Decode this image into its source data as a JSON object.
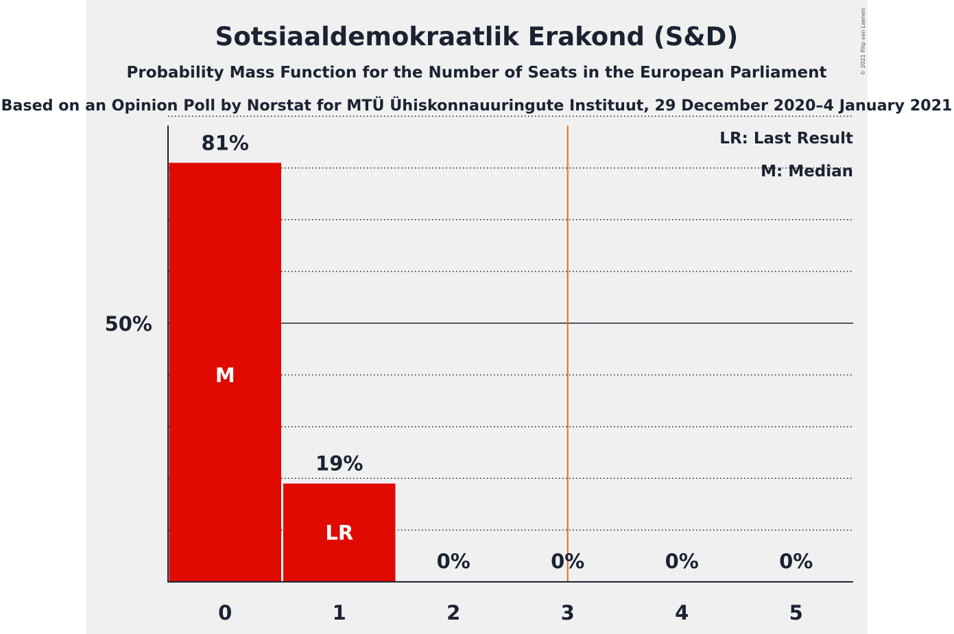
{
  "chart_data": {
    "type": "bar",
    "title": "Sotsiaaldemokraatlik Erakond (S&D)",
    "subtitle": "Probability Mass Function for the Number of Seats in the European Parliament",
    "source": "Based on an Opinion Poll by Norstat for MTÜ Ühiskonnauuringute Instituut, 29 December 2020–4 January 2021",
    "copyright": "© 2021 Filip van Laenen",
    "categories": [
      "0",
      "1",
      "2",
      "3",
      "4",
      "5"
    ],
    "values": [
      81,
      19,
      0,
      0,
      0,
      0
    ],
    "value_labels": [
      "81%",
      "19%",
      "0%",
      "0%",
      "0%",
      "0%"
    ],
    "bar_labels": [
      "M",
      "LR",
      "",
      "",
      "",
      ""
    ],
    "ylim": [
      0,
      100
    ],
    "yticks": [
      {
        "value": 50,
        "label": "50%"
      }
    ],
    "minor_gridlines": [
      10,
      20,
      30,
      40,
      60,
      70,
      80,
      90
    ],
    "last_result_line": 3.5,
    "legend": {
      "position": "top-right",
      "items": [
        "LR: Last Result",
        "M: Median"
      ]
    },
    "colors": {
      "bar": "#e00a00",
      "background": "#f0f0f0",
      "last_result_line": "#e07020",
      "text": "#1a2332",
      "axis": "#1a2332"
    }
  }
}
